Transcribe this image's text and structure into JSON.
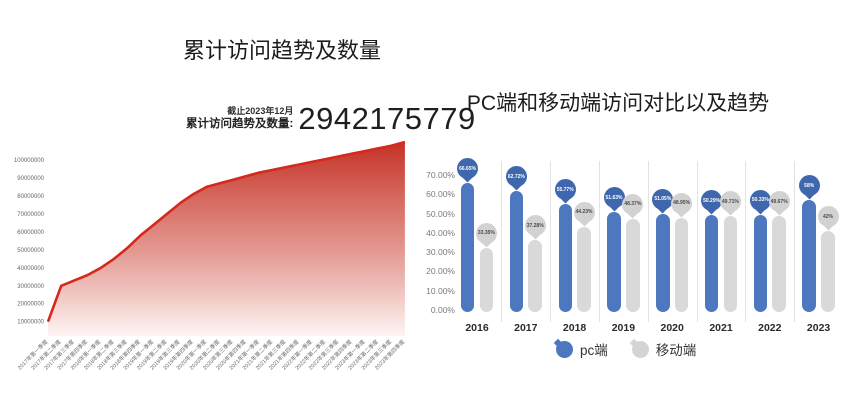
{
  "page": {
    "background": "#ffffff"
  },
  "chart_data": [
    {
      "type": "area",
      "title": "累计访问趋势及数量",
      "as_of": "截止2023年12月",
      "total_label": "累计访问趋势及数量:",
      "total_value": "2942175779",
      "x": [
        "2017年第一季度",
        "2017年第二季度",
        "2017年第三季度",
        "2017年第四季度",
        "2018年第一季度",
        "2018年第二季度",
        "2018年第三季度",
        "2018年第四季度",
        "2019年第一季度",
        "2019年第二季度",
        "2019年第三季度",
        "2019年第四季度",
        "2020年第一季度",
        "2020年第二季度",
        "2020年第三季度",
        "2020年第四季度",
        "2021年第一季度",
        "2021年第二季度",
        "2021年第三季度",
        "2021年第四季度",
        "2022年第一季度",
        "2022年第二季度",
        "2022年第三季度",
        "2022年第四季度",
        "2023年第一季度",
        "2023年第二季度",
        "2023年第三季度",
        "2023年第四季度"
      ],
      "values": [
        10000000,
        30000000,
        33000000,
        36000000,
        40000000,
        45000000,
        51000000,
        58000000,
        64000000,
        70000000,
        76000000,
        81000000,
        85000000,
        87000000,
        89000000,
        91000000,
        93000000,
        94500000,
        96000000,
        97500000,
        99000000,
        100500000,
        102000000,
        103500000,
        105000000,
        106500000,
        108000000,
        110000000
      ],
      "y_ticks": [
        "10000000",
        "20000000",
        "30000000",
        "40000000",
        "50000000",
        "60000000",
        "70000000",
        "80000000",
        "90000000",
        "100000000"
      ],
      "ylim": [
        0,
        100000000
      ],
      "grid": false,
      "line_color": "#d4291b",
      "fill_stops": [
        {
          "offset": "0%",
          "color": "#c32a1e",
          "opacity": "0.97"
        },
        {
          "offset": "55%",
          "color": "#de837b",
          "opacity": "0.85"
        },
        {
          "offset": "100%",
          "color": "#fdf4f3",
          "opacity": "0.9"
        }
      ]
    },
    {
      "type": "bar",
      "title": "PC端和移动端访问对比以及趋势",
      "categories": [
        "2016",
        "2017",
        "2018",
        "2019",
        "2020",
        "2021",
        "2022",
        "2023"
      ],
      "series": [
        {
          "name": "pc端",
          "values": [
            66.65,
            62.72,
            55.77,
            51.63,
            51.05,
            50.29,
            50.33,
            58
          ],
          "labels": [
            "66.65%",
            "62.72%",
            "55.77%",
            "51.63%",
            "51.05%",
            "50.29%",
            "50.33%",
            "58%"
          ],
          "color": "#4d77be",
          "balloon_color": "#3f67ad",
          "label_text_color": "#ffffff"
        },
        {
          "name": "移动端",
          "values": [
            33.35,
            37.28,
            44.23,
            48.37,
            48.95,
            49.71,
            49.67,
            42
          ],
          "labels": [
            "33.35%",
            "37.28%",
            "44.23%",
            "48.37%",
            "48.95%",
            "49.71%",
            "49.67%",
            "42%"
          ],
          "color": "#d9d9d9",
          "balloon_color": "#d2d2d2",
          "label_text_color": "#4a4a4a"
        }
      ],
      "y_ticks": [
        "0.00%",
        "10.00%",
        "20.00%",
        "30.00%",
        "40.00%",
        "50.00%",
        "60.00%",
        "70.00%"
      ],
      "ylim": [
        0,
        70
      ],
      "grid": false,
      "legend_position": "bottom"
    }
  ]
}
